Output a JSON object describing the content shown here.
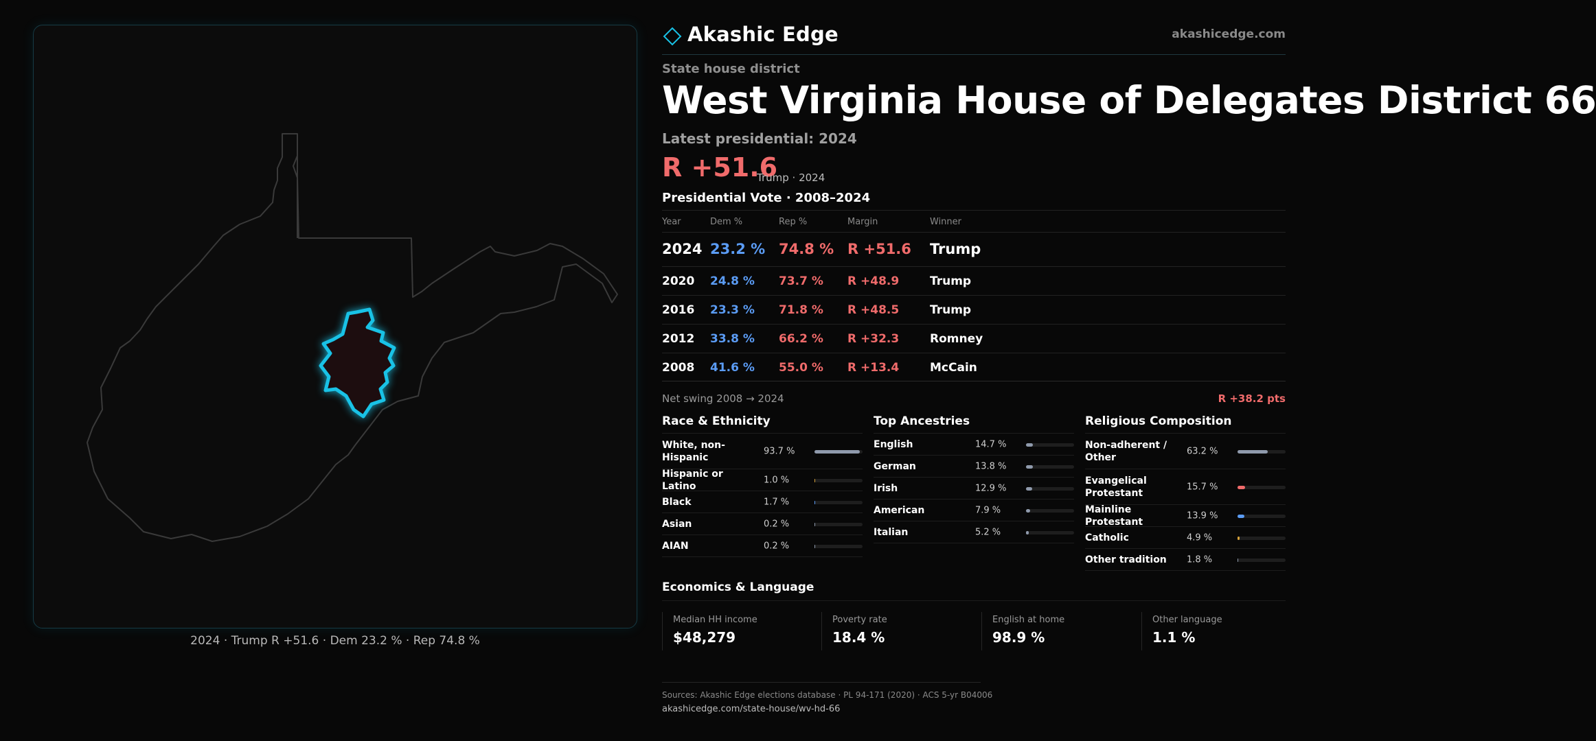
{
  "brand": {
    "name": "Akashic Edge",
    "site": "akashicedge.com",
    "accent_color": "#19c2e6"
  },
  "header": {
    "kicker": "State house district",
    "title": "West Virginia House of Delegates District 66",
    "latest": "Latest presidential: 2024",
    "margin": "R +51.6",
    "margin_note": "Trump · 2024"
  },
  "map": {
    "caption": "2024 · Trump R +51.6 · Dem 23.2 % · Rep 74.8 %",
    "district_outline_color": "#19c2e6",
    "district_fill_color": "#1d0d0f",
    "state_outline_color": "#3a3a3a"
  },
  "presidential": {
    "title": "Presidential Vote · 2008–2024",
    "columns": [
      "Year",
      "Dem %",
      "Rep %",
      "Margin",
      "Winner"
    ],
    "rows": [
      {
        "year": "2024",
        "dem": "23.2 %",
        "rep": "74.8 %",
        "margin": "R +51.6",
        "winner": "Trump"
      },
      {
        "year": "2020",
        "dem": "24.8 %",
        "rep": "73.7 %",
        "margin": "R +48.9",
        "winner": "Trump"
      },
      {
        "year": "2016",
        "dem": "23.3 %",
        "rep": "71.8 %",
        "margin": "R +48.5",
        "winner": "Trump"
      },
      {
        "year": "2012",
        "dem": "33.8 %",
        "rep": "66.2 %",
        "margin": "R +32.3",
        "winner": "Romney"
      },
      {
        "year": "2008",
        "dem": "41.6 %",
        "rep": "55.0 %",
        "margin": "R +13.4",
        "winner": "McCain"
      }
    ],
    "swing_label": "Net swing 2008 → 2024",
    "swing_value": "R +38.2 pts",
    "dem_color": "#5b9cf5",
    "rep_color": "#f06b6b"
  },
  "race": {
    "title": "Race & Ethnicity",
    "items": [
      {
        "label": "White, non-Hispanic",
        "pct": "93.7 %",
        "value": 93.7,
        "color": "#8f9aac"
      },
      {
        "label": "Hispanic or Latino",
        "pct": "1.0 %",
        "value": 1.0,
        "color": "#d6a23a"
      },
      {
        "label": "Black",
        "pct": "1.7 %",
        "value": 1.7,
        "color": "#5b9cf5"
      },
      {
        "label": "Asian",
        "pct": "0.2 %",
        "value": 0.2,
        "color": "#8f9aac"
      },
      {
        "label": "AIAN",
        "pct": "0.2 %",
        "value": 0.2,
        "color": "#8f9aac"
      }
    ]
  },
  "ancestry": {
    "title": "Top Ancestries",
    "items": [
      {
        "label": "English",
        "pct": "14.7 %",
        "value": 14.7,
        "color": "#8f9aac"
      },
      {
        "label": "German",
        "pct": "13.8 %",
        "value": 13.8,
        "color": "#8f9aac"
      },
      {
        "label": "Irish",
        "pct": "12.9 %",
        "value": 12.9,
        "color": "#8f9aac"
      },
      {
        "label": "American",
        "pct": "7.9 %",
        "value": 7.9,
        "color": "#8f9aac"
      },
      {
        "label": "Italian",
        "pct": "5.2 %",
        "value": 5.2,
        "color": "#8f9aac"
      }
    ]
  },
  "religion": {
    "title": "Religious Composition",
    "items": [
      {
        "label": "Non-adherent / Other",
        "pct": "63.2 %",
        "value": 63.2,
        "color": "#8f9aac"
      },
      {
        "label": "Evangelical Protestant",
        "pct": "15.7 %",
        "value": 15.7,
        "color": "#f06b6b"
      },
      {
        "label": "Mainline Protestant",
        "pct": "13.9 %",
        "value": 13.9,
        "color": "#5b9cf5"
      },
      {
        "label": "Catholic",
        "pct": "4.9 %",
        "value": 4.9,
        "color": "#d6a23a"
      },
      {
        "label": "Other tradition",
        "pct": "1.8 %",
        "value": 1.8,
        "color": "#8f9aac"
      }
    ]
  },
  "economics": {
    "title": "Economics & Language",
    "items": [
      {
        "label": "Median HH income",
        "value": "$48,279"
      },
      {
        "label": "Poverty rate",
        "value": "18.4 %"
      },
      {
        "label": "English at home",
        "value": "98.9 %"
      },
      {
        "label": "Other language",
        "value": "1.1 %"
      }
    ]
  },
  "footer": {
    "sources": "Sources: Akashic Edge elections database · PL 94-171 (2020) · ACS 5-yr B04006",
    "url": "akashicedge.com/state-house/wv-hd-66"
  }
}
